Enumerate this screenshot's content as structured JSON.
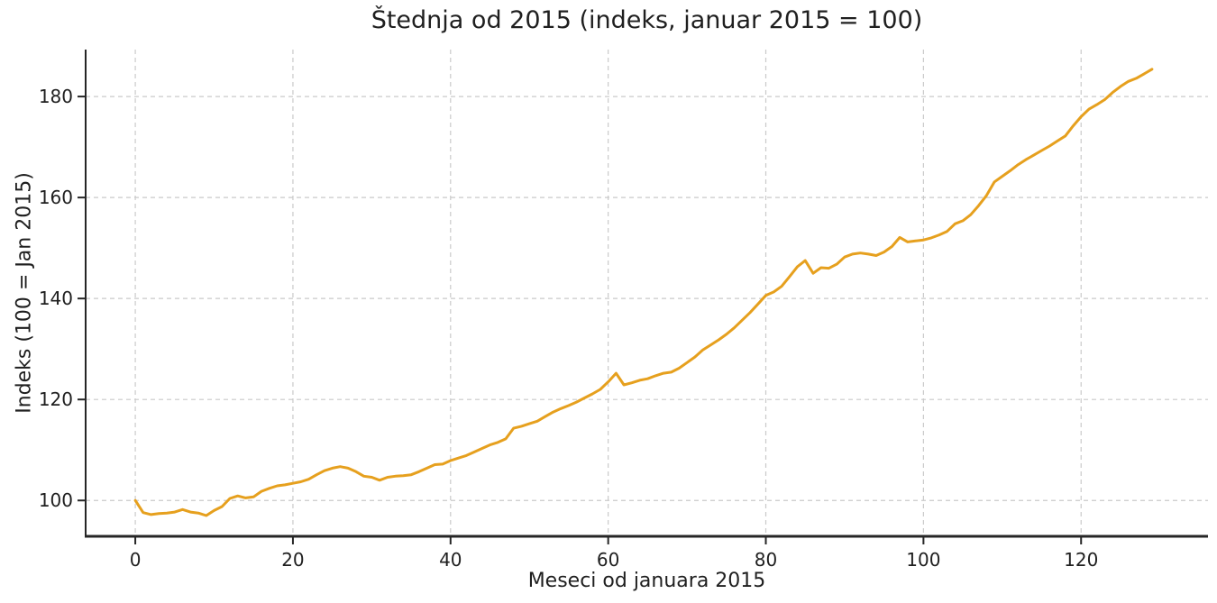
{
  "chart_data": {
    "type": "line",
    "title": "Štednja od 2015 (indeks, januar 2015 = 100)",
    "xlabel": "Meseci od januara 2015",
    "ylabel": "Indeks (100 = Jan 2015)",
    "legend": false,
    "grid": true,
    "grid_style": "dashed",
    "grid_color": "#cacaca",
    "line_color": "#E6A01E",
    "spine_color": "#262626",
    "background_color": "#ffffff",
    "xticks": [
      0,
      20,
      40,
      60,
      80,
      100,
      120
    ],
    "yticks": [
      100,
      120,
      140,
      160,
      180
    ],
    "xlim": [
      -6.3,
      136.1
    ],
    "ylim": [
      92.9,
      189.3
    ],
    "x": [
      0,
      1,
      2,
      3,
      4,
      5,
      6,
      7,
      8,
      9,
      10,
      11,
      12,
      13,
      14,
      15,
      16,
      17,
      18,
      19,
      20,
      21,
      22,
      23,
      24,
      25,
      26,
      27,
      28,
      29,
      30,
      31,
      32,
      33,
      34,
      35,
      36,
      37,
      38,
      39,
      40,
      41,
      42,
      43,
      44,
      45,
      46,
      47,
      48,
      49,
      50,
      51,
      52,
      53,
      54,
      55,
      56,
      57,
      58,
      59,
      60,
      61,
      62,
      63,
      64,
      65,
      66,
      67,
      68,
      69,
      70,
      71,
      72,
      73,
      74,
      75,
      76,
      77,
      78,
      79,
      80,
      81,
      82,
      83,
      84,
      85,
      86,
      87,
      88,
      89,
      90,
      91,
      92,
      93,
      94,
      95,
      96,
      97,
      98,
      99,
      100,
      101,
      102,
      103,
      104,
      105,
      106,
      107,
      108,
      109,
      110,
      111,
      112,
      113,
      114,
      115,
      116,
      117,
      118,
      119,
      120,
      121,
      122,
      123,
      124,
      125,
      126,
      127,
      128,
      129
    ],
    "values": [
      100.0,
      97.6,
      97.2,
      97.4,
      97.5,
      97.7,
      98.2,
      97.7,
      97.5,
      97.0,
      98.0,
      98.8,
      100.4,
      100.9,
      100.5,
      100.7,
      101.8,
      102.4,
      102.9,
      103.1,
      103.4,
      103.7,
      104.2,
      105.1,
      105.9,
      106.4,
      106.7,
      106.4,
      105.7,
      104.8,
      104.6,
      104.0,
      104.6,
      104.8,
      104.9,
      105.1,
      105.7,
      106.4,
      107.1,
      107.2,
      107.9,
      108.4,
      108.9,
      109.6,
      110.3,
      111.0,
      111.5,
      112.2,
      114.3,
      114.7,
      115.2,
      115.7,
      116.6,
      117.5,
      118.2,
      118.8,
      119.5,
      120.3,
      121.1,
      122.0,
      123.5,
      125.2,
      122.9,
      123.3,
      123.8,
      124.1,
      124.7,
      125.2,
      125.4,
      126.2,
      127.3,
      128.4,
      129.8,
      130.8,
      131.8,
      132.9,
      134.2,
      135.7,
      137.2,
      138.9,
      140.6,
      141.3,
      142.4,
      144.3,
      146.3,
      147.5,
      145.0,
      146.1,
      146.0,
      146.8,
      148.2,
      148.8,
      149.0,
      148.8,
      148.5,
      149.2,
      150.3,
      152.1,
      151.2,
      151.4,
      151.6,
      152.0,
      152.6,
      153.3,
      154.8,
      155.4,
      156.6,
      158.4,
      160.4,
      163.1,
      164.2,
      165.3,
      166.5,
      167.5,
      168.4,
      169.3,
      170.2,
      171.2,
      172.2,
      174.2,
      176.0,
      177.5,
      178.4,
      179.4,
      180.8,
      182.0,
      183.0,
      183.6,
      184.5,
      185.4
    ]
  }
}
